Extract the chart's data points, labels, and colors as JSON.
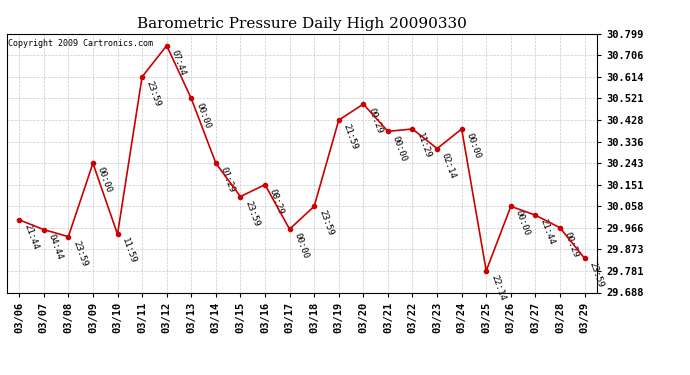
{
  "title": "Barometric Pressure Daily High 20090330",
  "copyright": "Copyright 2009 Cartronics.com",
  "x_labels": [
    "03/06",
    "03/07",
    "03/08",
    "03/09",
    "03/10",
    "03/11",
    "03/12",
    "03/13",
    "03/14",
    "03/15",
    "03/16",
    "03/17",
    "03/18",
    "03/19",
    "03/20",
    "03/21",
    "03/22",
    "03/23",
    "03/24",
    "03/25",
    "03/26",
    "03/27",
    "03/28",
    "03/29"
  ],
  "y_values": [
    30.0,
    29.958,
    29.928,
    30.243,
    29.938,
    30.614,
    30.748,
    30.521,
    30.243,
    30.1,
    30.151,
    29.96,
    30.058,
    30.428,
    30.497,
    30.38,
    30.39,
    30.306,
    30.39,
    29.781,
    30.058,
    30.02,
    29.966,
    29.835
  ],
  "point_labels": [
    "21:44",
    "04:44",
    "23:59",
    "00:00",
    "11:59",
    "23:59",
    "07:44",
    "00:00",
    "01:29",
    "23:59",
    "08:29",
    "00:00",
    "23:59",
    "21:59",
    "09:29",
    "00:00",
    "11:29",
    "02:14",
    "00:00",
    "22:14",
    "00:00",
    "21:44",
    "00:29",
    "23:59"
  ],
  "y_ticks": [
    29.688,
    29.781,
    29.873,
    29.966,
    30.058,
    30.151,
    30.243,
    30.336,
    30.428,
    30.521,
    30.614,
    30.706,
    30.799
  ],
  "y_min": 29.688,
  "y_max": 30.799,
  "line_color": "#cc0000",
  "marker_color": "#cc0000",
  "bg_color": "#ffffff",
  "grid_color": "#bbbbbb",
  "title_fontsize": 11,
  "label_fontsize": 6.5,
  "tick_fontsize": 7.5
}
